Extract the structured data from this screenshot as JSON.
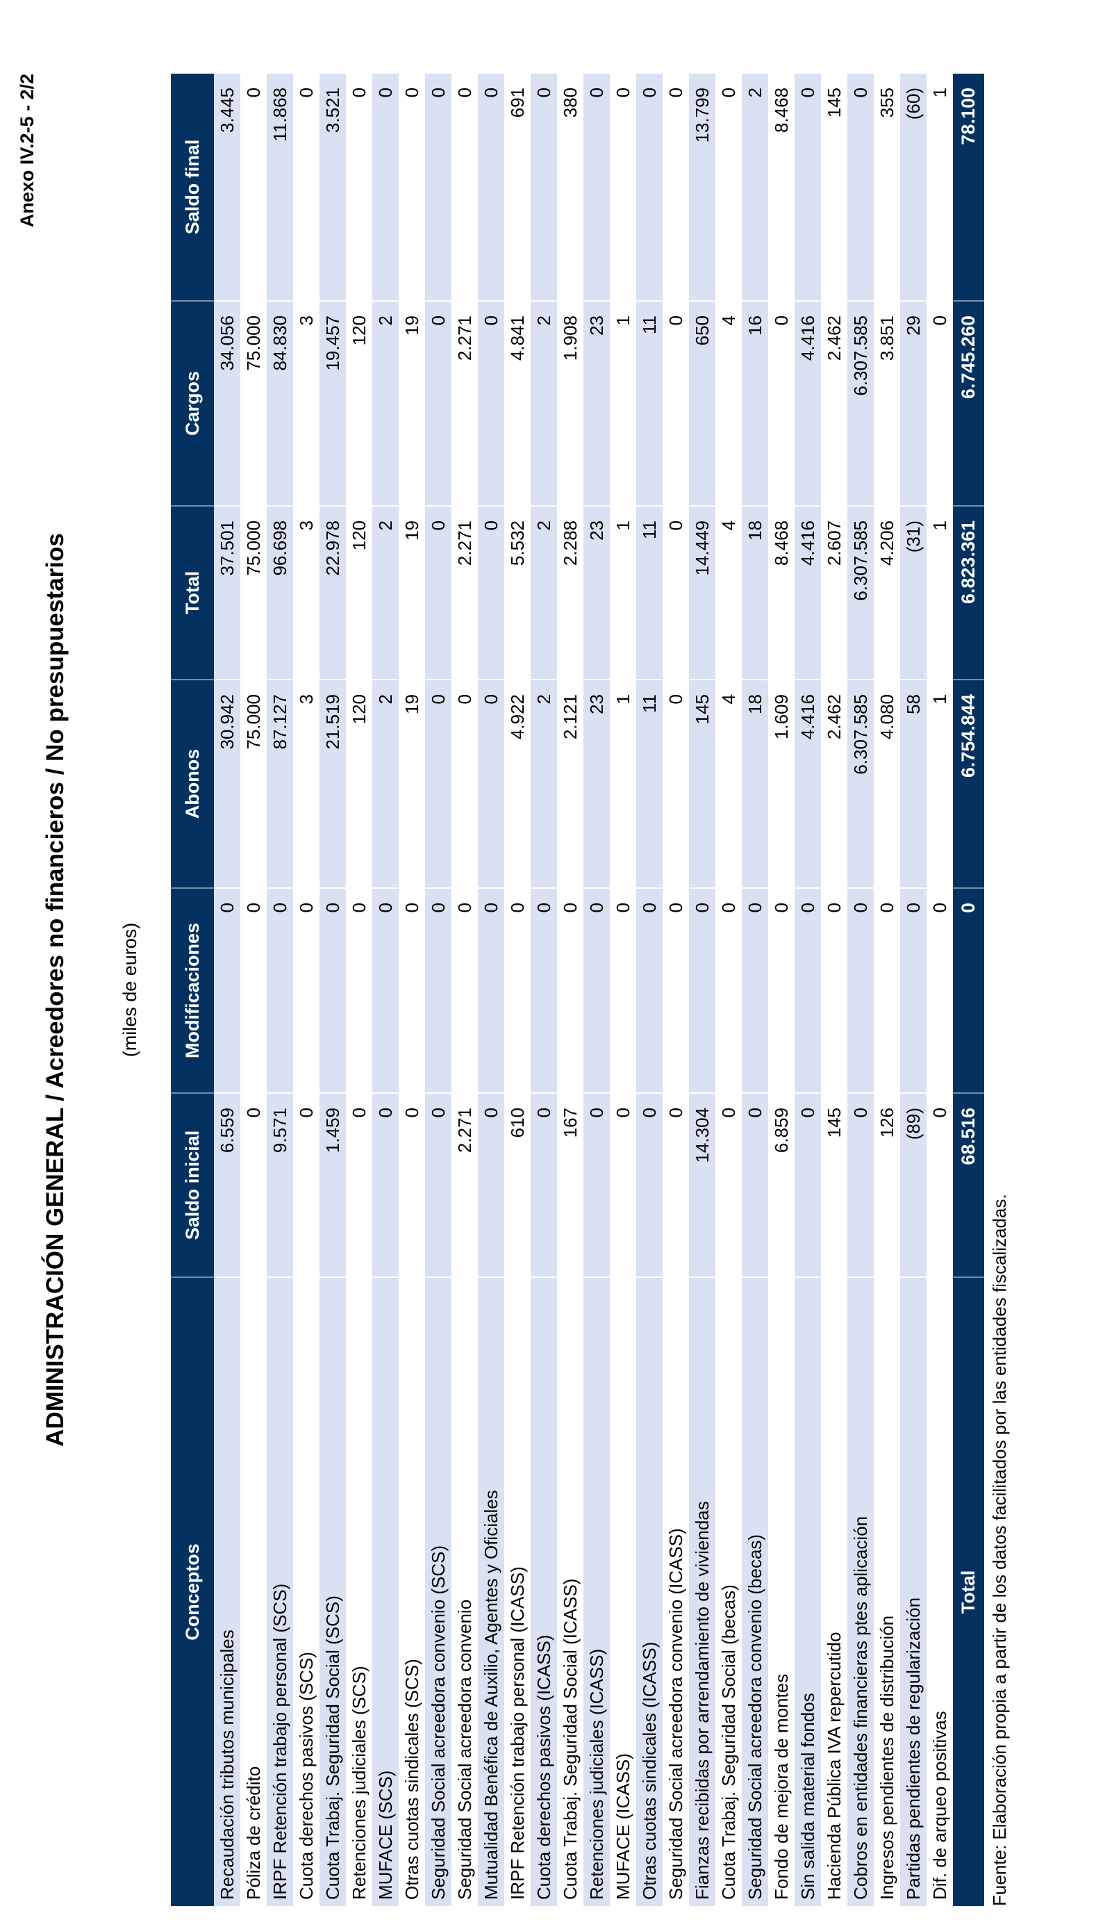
{
  "page": {
    "anexo_label": "Anexo IV.2-5 - 2/2",
    "title": "ADMINISTRACIÓN GENERAL / Acreedores no financieros / No presupuestarios",
    "subtitle": "(miles de euros)",
    "source_note": "Fuente: Elaboración propia a partir de los datos facilitados por las entidades fiscalizadas."
  },
  "colors": {
    "header_bg": "#043160",
    "header_text": "#FFFFFF",
    "stripe": "#D9E1F2",
    "body_text": "#000000"
  },
  "table": {
    "headers": [
      "Conceptos",
      "Saldo inicial",
      "Modificaciones",
      "Abonos",
      "Total",
      "Cargos",
      "Saldo final"
    ],
    "rows": [
      {
        "concepto": "Recaudación tributos municipales",
        "values": [
          "6.559",
          "0",
          "30.942",
          "37.501",
          "34.056",
          "3.445"
        ]
      },
      {
        "concepto": "Póliza de crédito",
        "values": [
          "0",
          "0",
          "75.000",
          "75.000",
          "75.000",
          "0"
        ]
      },
      {
        "concepto": "IRPF Retención trabajo personal (SCS)",
        "values": [
          "9.571",
          "0",
          "87.127",
          "96.698",
          "84.830",
          "11.868"
        ]
      },
      {
        "concepto": "Cuota derechos pasivos (SCS)",
        "values": [
          "0",
          "0",
          "3",
          "3",
          "3",
          "0"
        ]
      },
      {
        "concepto": "Cuota Trabaj. Seguridad Social (SCS)",
        "values": [
          "1.459",
          "0",
          "21.519",
          "22.978",
          "19.457",
          "3.521"
        ]
      },
      {
        "concepto": "Retenciones judiciales (SCS)",
        "values": [
          "0",
          "0",
          "120",
          "120",
          "120",
          "0"
        ]
      },
      {
        "concepto": "MUFACE (SCS)",
        "values": [
          "0",
          "0",
          "2",
          "2",
          "2",
          "0"
        ]
      },
      {
        "concepto": "Otras cuotas sindicales (SCS)",
        "values": [
          "0",
          "0",
          "19",
          "19",
          "19",
          "0"
        ]
      },
      {
        "concepto": "Seguridad Social acreedora convenio (SCS)",
        "values": [
          "0",
          "0",
          "0",
          "0",
          "0",
          "0"
        ]
      },
      {
        "concepto": "Seguridad Social acreedora convenio",
        "values": [
          "2.271",
          "0",
          "0",
          "2.271",
          "2.271",
          "0"
        ]
      },
      {
        "concepto": "Mutualidad Benéfica de Auxilio, Agentes y Oficiales",
        "values": [
          "0",
          "0",
          "0",
          "0",
          "0",
          "0"
        ]
      },
      {
        "concepto": "IRPF Retención trabajo personal (ICASS)",
        "values": [
          "610",
          "0",
          "4.922",
          "5.532",
          "4.841",
          "691"
        ]
      },
      {
        "concepto": "Cuota derechos pasivos (ICASS)",
        "values": [
          "0",
          "0",
          "2",
          "2",
          "2",
          "0"
        ]
      },
      {
        "concepto": "Cuota Trabaj. Seguridad Social (ICASS)",
        "values": [
          "167",
          "0",
          "2.121",
          "2.288",
          "1.908",
          "380"
        ]
      },
      {
        "concepto": "Retenciones judiciales (ICASS)",
        "values": [
          "0",
          "0",
          "23",
          "23",
          "23",
          "0"
        ]
      },
      {
        "concepto": "MUFACE (ICASS)",
        "values": [
          "0",
          "0",
          "1",
          "1",
          "1",
          "0"
        ]
      },
      {
        "concepto": "Otras cuotas sindicales (ICASS)",
        "values": [
          "0",
          "0",
          "11",
          "11",
          "11",
          "0"
        ]
      },
      {
        "concepto": "Seguridad Social acreedora convenio (ICASS)",
        "values": [
          "0",
          "0",
          "0",
          "0",
          "0",
          "0"
        ]
      },
      {
        "concepto": "Fianzas recibidas por arrendamiento de viviendas",
        "values": [
          "14.304",
          "0",
          "145",
          "14.449",
          "650",
          "13.799"
        ]
      },
      {
        "concepto": "Cuota Trabaj. Seguridad Social (becas)",
        "values": [
          "0",
          "0",
          "4",
          "4",
          "4",
          "0"
        ]
      },
      {
        "concepto": "Seguridad Social acreedora convenio (becas)",
        "values": [
          "0",
          "0",
          "18",
          "18",
          "16",
          "2"
        ]
      },
      {
        "concepto": "Fondo de mejora de montes",
        "values": [
          "6.859",
          "0",
          "1.609",
          "8.468",
          "0",
          "8.468"
        ]
      },
      {
        "concepto": "Sin salida material fondos",
        "values": [
          "0",
          "0",
          "4.416",
          "4.416",
          "4.416",
          "0"
        ]
      },
      {
        "concepto": "Hacienda Pública IVA repercutido",
        "values": [
          "145",
          "0",
          "2.462",
          "2.607",
          "2.462",
          "145"
        ]
      },
      {
        "concepto": "Cobros en entidades financieras ptes aplicación",
        "values": [
          "0",
          "0",
          "6.307.585",
          "6.307.585",
          "6.307.585",
          "0"
        ]
      },
      {
        "concepto": "Ingresos pendientes de distribución",
        "values": [
          "126",
          "0",
          "4.080",
          "4.206",
          "3.851",
          "355"
        ]
      },
      {
        "concepto": "Partidas pendientes de regularización",
        "values": [
          "(89)",
          "0",
          "58",
          "(31)",
          "29",
          "(60)"
        ]
      },
      {
        "concepto": "Dif. de arqueo positivas",
        "values": [
          "0",
          "0",
          "1",
          "1",
          "0",
          "1"
        ]
      }
    ],
    "total_row": {
      "label": "Total",
      "values": [
        "68.516",
        "0",
        "6.754.844",
        "6.823.361",
        "6.745.260",
        "78.100"
      ]
    }
  }
}
